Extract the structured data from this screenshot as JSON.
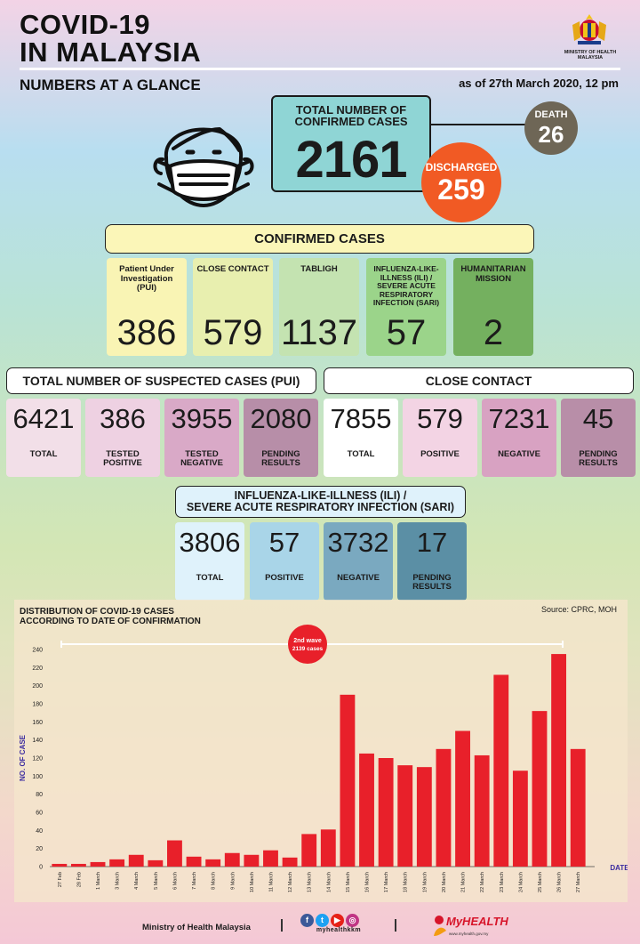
{
  "header": {
    "title_line1": "COVID-19",
    "title_line2": "IN MALAYSIA",
    "subtitle": "NUMBERS AT A GLANCE",
    "as_of": "as of 27th March 2020, 12 pm",
    "ministry_line1": "MINISTRY OF HEALTH",
    "ministry_line2": "MALAYSIA"
  },
  "totals": {
    "confirmed_label_line1": "TOTAL NUMBER OF",
    "confirmed_label_line2": "CONFIRMED CASES",
    "confirmed": "2161",
    "death_label": "DEATH",
    "death": "26",
    "discharged_label": "DISCHARGED",
    "discharged": "259"
  },
  "confirmed_cases": {
    "header": "CONFIRMED CASES",
    "cards": [
      {
        "label": "Patient Under Investigation (PUI)",
        "value": "386",
        "color": "#f9f4b4"
      },
      {
        "label": "CLOSE CONTACT",
        "value": "579",
        "color": "#e8efaf"
      },
      {
        "label": "TABLIGH",
        "value": "1137",
        "color": "#c4e3b1"
      },
      {
        "label": "INFLUENZA-LIKE-ILLNESS (ILI) / SEVERE ACUTE RESPIRATORY INFECTION (SARI)",
        "value": "57",
        "color": "#9bd48a"
      },
      {
        "label": "HUMANITARIAN MISSION",
        "value": "2",
        "color": "#74b05f"
      }
    ]
  },
  "pui": {
    "header": "TOTAL NUMBER OF SUSPECTED CASES (PUI)",
    "cards": [
      {
        "value": "6421",
        "label": "TOTAL",
        "color": "#f2dfe8"
      },
      {
        "value": "386",
        "label": "TESTED POSITIVE",
        "color": "#eed1e2"
      },
      {
        "value": "3955",
        "label": "TESTED NEGATIVE",
        "color": "#d9a9c7"
      },
      {
        "value": "2080",
        "label": "PENDING RESULTS",
        "color": "#b78ea8"
      }
    ]
  },
  "close_contact": {
    "header": "CLOSE CONTACT",
    "cards": [
      {
        "value": "7855",
        "label": "TOTAL",
        "color": "#ffffff"
      },
      {
        "value": "579",
        "label": "POSITIVE",
        "color": "#f3d4e4"
      },
      {
        "value": "7231",
        "label": "NEGATIVE",
        "color": "#d8a2c2"
      },
      {
        "value": "45",
        "label": "PENDING RESULTS",
        "color": "#b88ea8"
      }
    ]
  },
  "sari": {
    "header_line1": "INFLUENZA-LIKE-ILLNESS (ILI) /",
    "header_line2": "SEVERE ACUTE RESPIRATORY INFECTION (SARI)",
    "cards": [
      {
        "value": "3806",
        "label": "TOTAL",
        "color": "#dff2fb"
      },
      {
        "value": "57",
        "label": "POSITIVE",
        "color": "#a9d5e8"
      },
      {
        "value": "3732",
        "label": "NEGATIVE",
        "color": "#7aa9c0"
      },
      {
        "value": "17",
        "label": "PENDING RESULTS",
        "color": "#5b8fa5"
      }
    ]
  },
  "chart_data": {
    "type": "bar",
    "title_line1": "DISTRIBUTION OF COVID-19 CASES",
    "title_line2": "ACCORDING TO DATE OF CONFIRMATION",
    "source": "Source: CPRC, MOH",
    "xlabel": "DATE",
    "ylabel": "NO. OF CASE",
    "ylim": [
      0,
      240
    ],
    "yticks": [
      0,
      20,
      40,
      60,
      80,
      100,
      120,
      140,
      160,
      180,
      200,
      220,
      240
    ],
    "categories": [
      "27 Feb",
      "28 Feb",
      "1 March",
      "3 March",
      "4 March",
      "5 March",
      "6 March",
      "7 March",
      "8 March",
      "9 March",
      "10 March",
      "11 March",
      "12 March",
      "13 March",
      "14 March",
      "15 March",
      "16 March",
      "17 March",
      "18 March",
      "19 March",
      "20 March",
      "21 March",
      "22 March",
      "23 March",
      "24 March",
      "25 March",
      "26 March",
      "27 March"
    ],
    "values": [
      3,
      3,
      5,
      8,
      13,
      7,
      29,
      11,
      8,
      15,
      13,
      18,
      10,
      36,
      41,
      190,
      125,
      120,
      112,
      110,
      130,
      150,
      123,
      212,
      106,
      172,
      235,
      130
    ],
    "bar_color": "#e8202a",
    "annotation": {
      "line1": "2nd wave",
      "line2": "2139 cases"
    }
  },
  "footer": {
    "ministry": "Ministry of Health Malaysia",
    "social_handle": "myhealthkkm",
    "myhealth": "MyHEALTH",
    "myhealth_url": "www.myhealth.gov.my"
  }
}
